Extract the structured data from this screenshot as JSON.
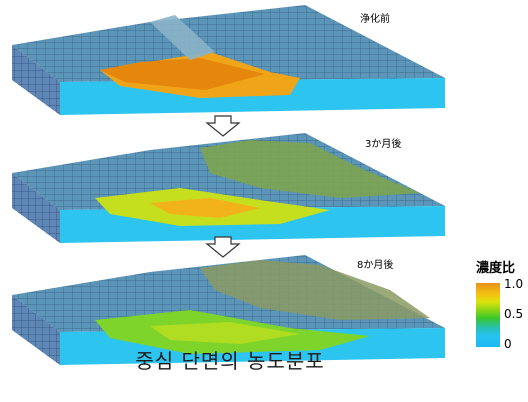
{
  "panels": [
    {
      "label": "浄化前",
      "stage": "before"
    },
    {
      "label": "3か月後",
      "stage": "3-months"
    },
    {
      "label": "8か月後",
      "stage": "8-months"
    }
  ],
  "caption": "중심 단면의 농도분포",
  "legend": {
    "title": "濃度比",
    "ticks": [
      "1.0",
      "0.5",
      "0"
    ],
    "colors": {
      "high": "#e8901a",
      "mid": "#3bc72e",
      "low": "#1fbaf2"
    }
  }
}
